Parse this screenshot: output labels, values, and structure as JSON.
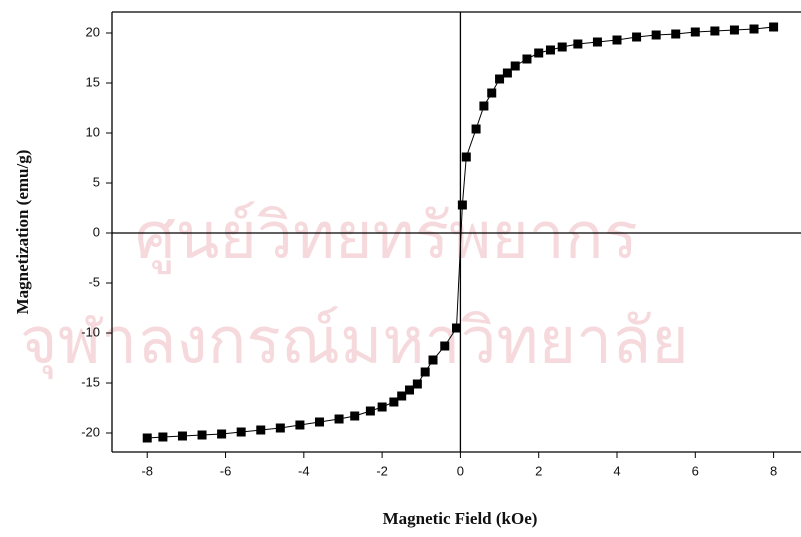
{
  "chart_data": {
    "type": "scatter",
    "x_label": "Magnetic Field (kOe)",
    "y_label": "Magnetization (emu/g)",
    "watermark": [
      "ศูนย์วิทยทรัพยากร",
      "จุฬาลงกรณ์มหาวิทยาลัย"
    ],
    "series": [
      {
        "color": "#000000",
        "x": [
          -8,
          -7.6,
          -7.1,
          -6.6,
          -6.1,
          -5.6,
          -5.1,
          -4.6,
          -4.1,
          -3.6,
          -3.1,
          -2.7,
          -2.3,
          -2.0,
          -1.7,
          -1.5,
          -1.3,
          -1.1,
          -0.9,
          -0.7,
          -0.4,
          -0.1,
          0.05,
          0.15,
          0.4,
          0.6,
          0.8,
          1.0,
          1.2,
          1.4,
          1.7,
          2.0,
          2.3,
          2.6,
          3.0,
          3.5,
          4.0,
          4.5,
          5.0,
          5.5,
          6.0,
          6.5,
          7.0,
          7.5,
          8.0
        ],
        "values": [
          -20.5,
          -20.4,
          -20.3,
          -20.2,
          -20.1,
          -19.9,
          -19.7,
          -19.5,
          -19.2,
          -18.9,
          -18.6,
          -18.3,
          -17.8,
          -17.4,
          -16.9,
          -16.3,
          -15.7,
          -15.1,
          -13.9,
          -12.7,
          -11.3,
          -9.5,
          2.8,
          7.6,
          10.4,
          12.7,
          14.0,
          15.4,
          16.0,
          16.7,
          17.4,
          18.0,
          18.3,
          18.6,
          18.9,
          19.1,
          19.3,
          19.6,
          19.8,
          19.9,
          20.1,
          20.2,
          20.3,
          20.4,
          20.6
        ]
      }
    ],
    "xlim": [
      -8.9,
      8.7
    ],
    "xticks": [
      -8,
      -6,
      -4,
      -2,
      0,
      2,
      4,
      6,
      8
    ],
    "ylim": [
      -21.9,
      22.1
    ],
    "yticks": [
      -20,
      -15,
      -10,
      -5,
      0,
      5,
      10,
      15,
      20
    ]
  }
}
